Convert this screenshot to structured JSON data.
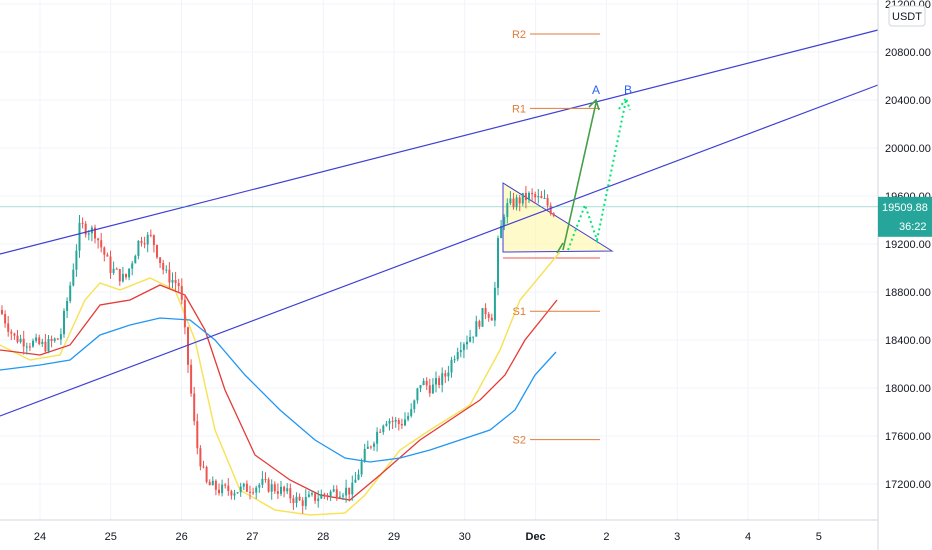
{
  "chart_data": {
    "type": "candlestick",
    "currency_label": "USDT",
    "y_axis": {
      "ticks": [
        "21200.00",
        "20800.00",
        "20400.00",
        "20000.00",
        "19600.00",
        "19200.00",
        "18800.00",
        "18400.00",
        "18000.00",
        "17600.00",
        "17200.00"
      ],
      "range": [
        17050,
        21400
      ],
      "grid": true
    },
    "x_axis": {
      "ticks": [
        "24",
        "25",
        "26",
        "27",
        "28",
        "29",
        "30",
        "Dec",
        "2",
        "3",
        "4",
        "5"
      ]
    },
    "last_price": {
      "value": "19509.88",
      "countdown": "36:22",
      "color": "#26a69a"
    },
    "pivot_levels": [
      {
        "label": "R2",
        "value": 20950
      },
      {
        "label": "R1",
        "value": 20330
      },
      {
        "label": "S1",
        "value": 18640
      },
      {
        "label": "S2",
        "value": 17570
      }
    ],
    "projection_labels": [
      {
        "label": "A",
        "color": "#2962ff"
      },
      {
        "label": "B",
        "color": "#2962ff"
      }
    ],
    "colors": {
      "up_candle": "#26a69a",
      "down_candle": "#ef5350",
      "ema_yellow": "#f7e35b",
      "ema_red": "#e53935",
      "ema_blue": "#2196f3",
      "channel": "#3f3fd4",
      "triangle_fill": "#fff59d",
      "projection_green": "#43a047",
      "projection_dotted": "#00e676",
      "pivot": "#e07b39"
    }
  }
}
